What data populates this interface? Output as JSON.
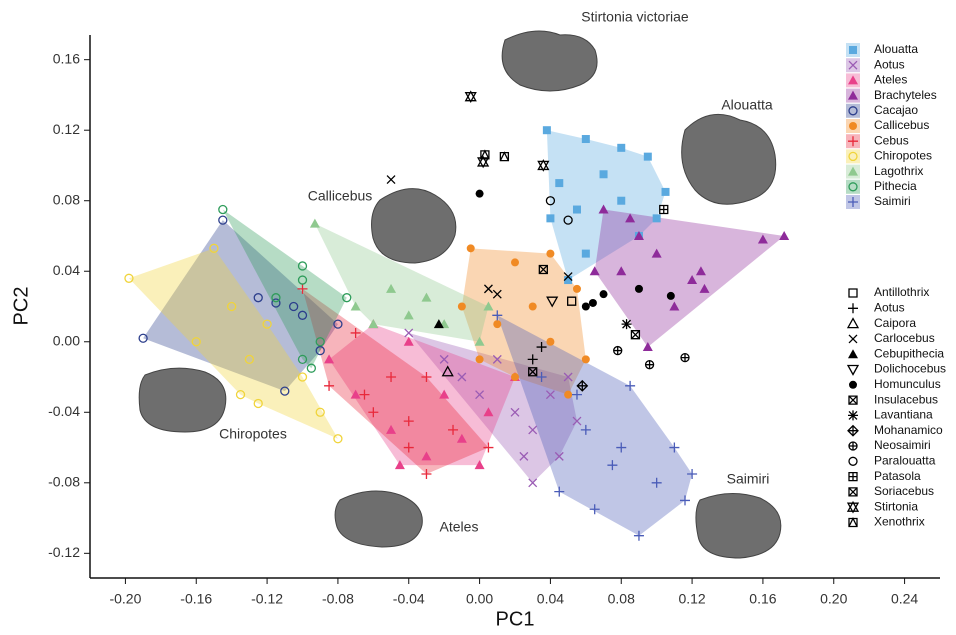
{
  "chart_data": {
    "type": "scatter",
    "x_label": "PC1",
    "y_label": "PC2",
    "xlim": [
      -0.22,
      0.26
    ],
    "ylim": [
      -0.134,
      0.174
    ],
    "xticks": [
      {
        "value": -0.2,
        "label": "-0.20"
      },
      -0.16,
      -0.12,
      -0.08,
      -0.04,
      {
        "value": 0,
        "label": "0.00"
      },
      0.04,
      0.08,
      0.12,
      0.16,
      {
        "value": 0.2,
        "label": "0.20"
      },
      0.24
    ],
    "yticks": [
      -0.12,
      -0.08,
      -0.04,
      {
        "value": 0,
        "label": "0.00"
      },
      0.04,
      0.08,
      0.12,
      0.16
    ],
    "annotations": [
      "Stirtonia victoriae",
      "Alouatta",
      "Callicebus",
      "Chiropotes",
      "Ateles",
      "Saimiri"
    ],
    "series": [
      {
        "name": "Alouatta",
        "color": "#5aa9df",
        "marker": "square",
        "hull": true,
        "x": [
          0.038,
          0.06,
          0.08,
          0.095,
          0.105,
          0.045,
          0.07,
          0.055,
          0.08,
          0.04,
          0.06,
          0.05,
          0.1,
          0.09
        ],
        "y": [
          0.12,
          0.115,
          0.11,
          0.105,
          0.085,
          0.09,
          0.095,
          0.075,
          0.08,
          0.07,
          0.05,
          0.035,
          0.07,
          0.06
        ]
      },
      {
        "name": "Aotus",
        "color": "#9a5cb4",
        "marker": "x",
        "hull": true,
        "x": [
          -0.01,
          0.0,
          0.02,
          0.03,
          0.025,
          0.04,
          0.05,
          -0.02,
          0.01,
          0.03,
          0.055,
          -0.04,
          0.045
        ],
        "y": [
          -0.02,
          -0.03,
          -0.04,
          -0.05,
          -0.065,
          -0.03,
          -0.02,
          -0.01,
          -0.01,
          -0.08,
          -0.045,
          0.005,
          -0.065
        ]
      },
      {
        "name": "Ateles",
        "color": "#e8408a",
        "marker": "triangle",
        "hull": true,
        "x": [
          -0.085,
          -0.07,
          -0.05,
          -0.03,
          -0.01,
          0.005,
          0.02,
          -0.04,
          -0.02,
          -0.06,
          0.0,
          -0.045
        ],
        "y": [
          -0.01,
          -0.03,
          -0.05,
          -0.065,
          -0.055,
          -0.04,
          -0.02,
          0.0,
          -0.03,
          0.01,
          -0.07,
          -0.07
        ]
      },
      {
        "name": "Brachyteles",
        "color": "#8e2b9a",
        "marker": "triangle",
        "hull": true,
        "x": [
          0.07,
          0.085,
          0.16,
          0.172,
          0.12,
          0.095,
          0.11,
          0.125,
          0.1,
          0.08,
          0.065,
          0.127,
          0.09
        ],
        "y": [
          0.075,
          0.07,
          0.058,
          0.06,
          0.035,
          -0.003,
          0.02,
          0.04,
          0.05,
          0.04,
          0.04,
          0.03,
          0.06
        ]
      },
      {
        "name": "Cacajao",
        "color": "#2c3e8c",
        "marker": "circle-open",
        "hull": true,
        "x": [
          -0.145,
          -0.19,
          -0.115,
          -0.1,
          -0.11,
          -0.08,
          -0.09,
          -0.125,
          -0.105
        ],
        "y": [
          0.069,
          0.002,
          0.022,
          0.015,
          -0.028,
          0.01,
          -0.005,
          0.025,
          0.02
        ]
      },
      {
        "name": "Callicebus",
        "color": "#f08a24",
        "marker": "circle",
        "hull": true,
        "x": [
          -0.005,
          0.02,
          0.04,
          0.055,
          0.06,
          0.05,
          0.01,
          -0.01,
          0.03,
          0.04,
          0.0,
          0.02
        ],
        "y": [
          0.053,
          0.045,
          0.05,
          0.03,
          -0.01,
          -0.03,
          0.01,
          0.02,
          0.02,
          0.0,
          -0.01,
          -0.02
        ]
      },
      {
        "name": "Cebus",
        "color": "#e8293b",
        "marker": "plus",
        "hull": true,
        "x": [
          -0.1,
          -0.085,
          -0.06,
          -0.04,
          -0.03,
          -0.015,
          0.005,
          -0.05,
          -0.07,
          -0.03,
          -0.04,
          -0.065
        ],
        "y": [
          0.03,
          -0.025,
          -0.04,
          -0.045,
          -0.075,
          -0.05,
          -0.06,
          -0.02,
          0.005,
          -0.02,
          -0.06,
          -0.03
        ]
      },
      {
        "name": "Chiropotes",
        "color": "#f0d43a",
        "marker": "circle-open",
        "hull": true,
        "x": [
          -0.198,
          -0.15,
          -0.16,
          -0.135,
          -0.125,
          -0.08,
          -0.09,
          -0.14,
          -0.12,
          -0.13,
          -0.1
        ],
        "y": [
          0.036,
          0.053,
          0.0,
          -0.03,
          -0.035,
          -0.055,
          -0.04,
          0.02,
          0.01,
          -0.01,
          -0.02
        ]
      },
      {
        "name": "Lagothrix",
        "color": "#8fc98f",
        "marker": "triangle",
        "hull": true,
        "x": [
          -0.093,
          -0.05,
          -0.03,
          0.005,
          -0.02,
          -0.06,
          -0.07,
          0.0,
          -0.04
        ],
        "y": [
          0.067,
          0.03,
          0.025,
          0.02,
          0.01,
          0.01,
          0.02,
          0.0,
          0.015
        ]
      },
      {
        "name": "Pithecia",
        "color": "#2e9c5a",
        "marker": "circle-open",
        "hull": true,
        "x": [
          -0.145,
          -0.1,
          -0.1,
          -0.075,
          -0.1,
          -0.095,
          -0.09,
          -0.115
        ],
        "y": [
          0.075,
          0.043,
          0.035,
          0.025,
          -0.01,
          -0.015,
          0.0,
          0.025
        ]
      },
      {
        "name": "Saimiri",
        "color": "#4a5cb8",
        "marker": "plus",
        "hull": true,
        "x": [
          0.01,
          0.035,
          0.06,
          0.085,
          0.11,
          0.12,
          0.116,
          0.09,
          0.065,
          0.045,
          0.075,
          0.1,
          0.08,
          0.055
        ],
        "y": [
          0.015,
          -0.02,
          -0.05,
          -0.025,
          -0.06,
          -0.075,
          -0.09,
          -0.11,
          -0.095,
          -0.085,
          -0.07,
          -0.08,
          -0.06,
          -0.03
        ]
      },
      {
        "name": "Antillothrix",
        "color": "#000000",
        "marker": "square-open",
        "hull": false,
        "x": [
          0.052
        ],
        "y": [
          0.023
        ]
      },
      {
        "name": "Aotus",
        "color": "#000000",
        "marker": "plus",
        "hull": false,
        "x": [
          0.035,
          0.03
        ],
        "y": [
          -0.003,
          -0.01
        ]
      },
      {
        "name": "Caipora",
        "color": "#000000",
        "marker": "triangle-open",
        "hull": false,
        "x": [
          -0.018
        ],
        "y": [
          -0.017
        ]
      },
      {
        "name": "Carlocebus",
        "color": "#000000",
        "marker": "x",
        "hull": false,
        "x": [
          -0.05,
          0.05,
          0.005,
          0.01
        ],
        "y": [
          0.092,
          0.037,
          0.03,
          0.027
        ]
      },
      {
        "name": "Cebupithecia",
        "color": "#000000",
        "marker": "triangle",
        "hull": false,
        "x": [
          -0.023
        ],
        "y": [
          0.01
        ]
      },
      {
        "name": "Dolichocebus",
        "color": "#000000",
        "marker": "triangle-down-open",
        "hull": false,
        "x": [
          0.041
        ],
        "y": [
          0.023
        ]
      },
      {
        "name": "Homunculus",
        "color": "#000000",
        "marker": "circle",
        "hull": false,
        "x": [
          0.0,
          0.064,
          0.07,
          0.06,
          0.09,
          0.108
        ],
        "y": [
          0.084,
          0.022,
          0.027,
          0.02,
          0.03,
          0.026
        ]
      },
      {
        "name": "Insulacebus",
        "color": "#000000",
        "marker": "square-x",
        "hull": false,
        "x": [
          0.03
        ],
        "y": [
          -0.017
        ]
      },
      {
        "name": "Lavantiana",
        "color": "#000000",
        "marker": "asterisk",
        "hull": false,
        "x": [
          0.083
        ],
        "y": [
          0.01
        ]
      },
      {
        "name": "Mohanamico",
        "color": "#000000",
        "marker": "diamond-plus",
        "hull": false,
        "x": [
          0.058
        ],
        "y": [
          -0.025
        ]
      },
      {
        "name": "Neosaimiri",
        "color": "#000000",
        "marker": "circle-plus",
        "hull": false,
        "x": [
          0.078,
          0.096,
          0.116
        ],
        "y": [
          -0.005,
          -0.013,
          -0.009
        ]
      },
      {
        "name": "Paralouatta",
        "color": "#000000",
        "marker": "circle-open",
        "hull": false,
        "x": [
          0.04,
          0.05
        ],
        "y": [
          0.08,
          0.069
        ]
      },
      {
        "name": "Patasola",
        "color": "#000000",
        "marker": "square-plus",
        "hull": false,
        "x": [
          0.104
        ],
        "y": [
          0.075
        ]
      },
      {
        "name": "Soriacebus",
        "color": "#000000",
        "marker": "square-x",
        "hull": false,
        "x": [
          0.036,
          0.088
        ],
        "y": [
          0.041,
          0.004
        ]
      },
      {
        "name": "Stirtonia",
        "color": "#000000",
        "marker": "star",
        "hull": false,
        "x": [
          -0.005,
          0.036,
          0.002
        ],
        "y": [
          0.139,
          0.1,
          0.102
        ]
      },
      {
        "name": "Xenothrix",
        "color": "#000000",
        "marker": "square-triangle",
        "hull": false,
        "x": [
          0.003,
          0.014
        ],
        "y": [
          0.106,
          0.105
        ]
      }
    ]
  }
}
